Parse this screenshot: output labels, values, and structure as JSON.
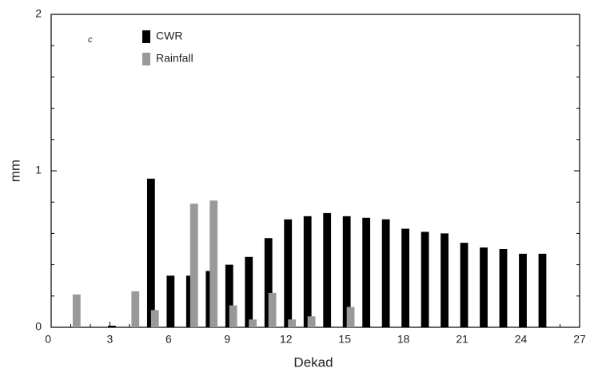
{
  "chart_data": {
    "type": "bar",
    "annotation": "c",
    "x_label": "Dekad",
    "y_label": "mm",
    "x": [
      1,
      2,
      3,
      4,
      5,
      6,
      7,
      8,
      9,
      10,
      11,
      12,
      13,
      14,
      15,
      16,
      17,
      18,
      19,
      20,
      21,
      22,
      23,
      24,
      25
    ],
    "series": [
      {
        "name": "CWR",
        "color": "#000000",
        "values": [
          0,
          0,
          0.01,
          0,
          0.95,
          0.33,
          0.33,
          0.36,
          0.4,
          0.45,
          0.57,
          0.69,
          0.71,
          0.73,
          0.71,
          0.7,
          0.69,
          0.63,
          0.61,
          0.6,
          0.54,
          0.51,
          0.5,
          0.47,
          0.47
        ]
      },
      {
        "name": "Rainfall",
        "color": "#999999",
        "values": [
          0.21,
          0,
          0,
          0.23,
          0.11,
          0,
          0.79,
          0.81,
          0.14,
          0.05,
          0.22,
          0.05,
          0.07,
          0,
          0.13,
          0,
          0,
          0,
          0,
          0,
          0,
          0,
          0,
          0,
          0
        ]
      }
    ],
    "xlim": [
      0,
      27
    ],
    "xticks": [
      0,
      3,
      6,
      9,
      12,
      15,
      18,
      21,
      24,
      27
    ],
    "ylim": [
      0,
      2
    ],
    "yticks": [
      0,
      1,
      2
    ],
    "legend": "top-left"
  }
}
